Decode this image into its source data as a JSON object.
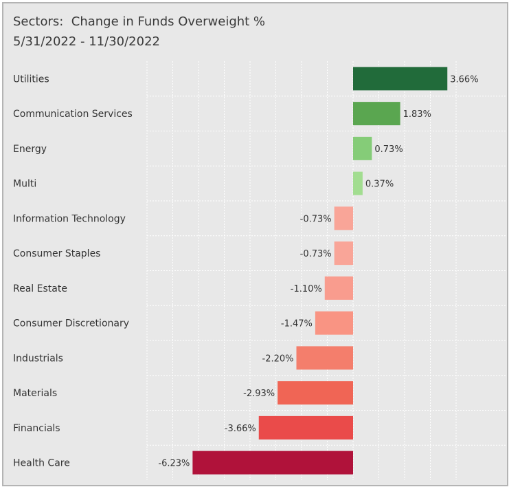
{
  "chart_data": {
    "type": "bar",
    "orientation": "horizontal",
    "title": "Sectors:  Change in Funds Overweight %",
    "subtitle": "5/31/2022 - 11/30/2022",
    "categories": [
      "Utilities",
      "Communication Services",
      "Energy",
      "Multi",
      "Information Technology",
      "Consumer Staples",
      "Real Estate",
      "Consumer Discretionary",
      "Industrials",
      "Materials",
      "Financials",
      "Health Care"
    ],
    "values": [
      3.66,
      1.83,
      0.73,
      0.37,
      -0.73,
      -0.73,
      -1.1,
      -1.47,
      -2.2,
      -2.93,
      -3.66,
      -6.23
    ],
    "labels": [
      "3.66%",
      "1.83%",
      "0.73%",
      "0.37%",
      "-0.73%",
      "-0.73%",
      "-1.10%",
      "-1.47%",
      "-2.20%",
      "-2.93%",
      "-3.66%",
      "-6.23%"
    ],
    "colors": [
      "#216b3a",
      "#5aa650",
      "#85cc78",
      "#a2dd90",
      "#f9a598",
      "#f9a598",
      "#f99c8e",
      "#f99483",
      "#f47e6c",
      "#f06555",
      "#ea4b4a",
      "#b0123a"
    ],
    "xlim": [
      -8,
      4
    ],
    "grid": true,
    "legend": "none"
  }
}
